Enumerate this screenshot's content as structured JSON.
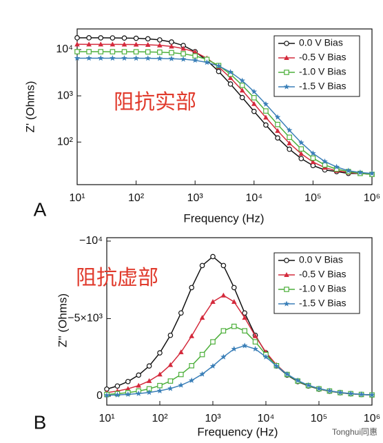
{
  "chart_data": [
    {
      "type": "line",
      "panel_label": "A",
      "annotation": "阻抗实部",
      "xlabel": "Frequency (Hz)",
      "ylabel": "Z' (Ohms)",
      "xscale": "log",
      "yscale": "log",
      "legend": "upper right",
      "xlim": [
        10,
        1000000
      ],
      "ylim": [
        12,
        28000
      ],
      "xticks": [
        {
          "value": 10,
          "label": "10¹"
        },
        {
          "value": 100,
          "label": "10²"
        },
        {
          "value": 1000,
          "label": "10³"
        },
        {
          "value": 10000,
          "label": "10⁴"
        },
        {
          "value": 100000,
          "label": "10⁵"
        },
        {
          "value": 1000000,
          "label": "10⁶"
        }
      ],
      "yticks": [
        {
          "value": 100,
          "label": "10²"
        },
        {
          "value": 1000,
          "label": "10³"
        },
        {
          "value": 10000,
          "label": "10⁴"
        }
      ],
      "x": [
        10,
        15.85,
        25.12,
        39.81,
        63.1,
        100,
        158.5,
        251.2,
        398.1,
        631,
        1000,
        1585,
        2512,
        3981,
        6310,
        10000,
        15850,
        25120,
        39810,
        63100,
        100000,
        158500,
        251200,
        398100,
        631000,
        1000000
      ],
      "series": [
        {
          "name": "0.0 V Bias",
          "color": "#111111",
          "marker": "circle",
          "values": [
            18010,
            18010,
            17970,
            17910,
            17800,
            17590,
            17120,
            16220,
            14600,
            12260,
            9020,
            5850,
            3370,
            1800,
            920,
            461,
            234,
            123,
            70,
            44,
            31,
            25,
            23,
            21,
            21,
            20
          ]
        },
        {
          "name": "-0.5 V Bias",
          "color": "#d42a3c",
          "marker": "triangle",
          "values": [
            13020,
            13010,
            13000,
            12980,
            12940,
            12860,
            12710,
            12370,
            11720,
            10550,
            8860,
            6520,
            4230,
            2440,
            1310,
            670,
            340,
            175,
            94,
            56,
            37,
            28,
            24,
            22,
            21,
            20
          ]
        },
        {
          "name": "-1.0 V Bias",
          "color": "#4caf3a",
          "marker": "square",
          "values": [
            9020,
            9020,
            9010,
            9000,
            8990,
            8970,
            8910,
            8800,
            8570,
            8120,
            7310,
            6140,
            4520,
            2940,
            1690,
            910,
            470,
            240,
            127,
            71,
            45,
            32,
            26,
            23,
            21,
            20
          ]
        },
        {
          "name": "-1.5 V Bias",
          "color": "#3a7fb8",
          "marker": "star",
          "values": [
            6520,
            6520,
            6520,
            6510,
            6510,
            6500,
            6480,
            6440,
            6360,
            6200,
            5870,
            5290,
            4440,
            3270,
            2130,
            1230,
            660,
            345,
            180,
            97,
            57,
            38,
            29,
            24,
            22,
            21
          ]
        }
      ]
    },
    {
      "type": "line",
      "panel_label": "B",
      "annotation": "阻抗虚部",
      "xlabel": "Frequency (Hz)",
      "ylabel": "Z'' (Ohms)",
      "xscale": "log",
      "yscale": "linear",
      "legend": "upper right",
      "xlim": [
        10,
        1000000
      ],
      "ylim": [
        580,
        -10220
      ],
      "xticks": [
        {
          "value": 10,
          "label": "10¹"
        },
        {
          "value": 100,
          "label": "10²"
        },
        {
          "value": 1000,
          "label": "10³"
        },
        {
          "value": 10000,
          "label": "10⁴"
        },
        {
          "value": 100000,
          "label": "10⁵"
        },
        {
          "value": 1000000,
          "label": "10⁶"
        }
      ],
      "yticks": [
        0,
        {
          "value": -5000,
          "label": "−5×10³"
        },
        {
          "value": -10000,
          "label": "−10⁴"
        }
      ],
      "x": [
        10,
        15.85,
        25.12,
        39.81,
        63.1,
        100,
        158.5,
        251.2,
        398.1,
        631,
        1000,
        1585,
        2512,
        3981,
        6310,
        10000,
        15850,
        25120,
        39810,
        63100,
        100000,
        158500,
        251200,
        398100,
        631000,
        1000000
      ],
      "series": [
        {
          "name": "0.0 V Bias",
          "color": "#111111",
          "marker": "circle",
          "values": [
            -452,
            -653,
            -941,
            -1357,
            -1944,
            -2790,
            -3924,
            -5364,
            -7002,
            -8424,
            -9000,
            -8424,
            -7002,
            -5364,
            -3924,
            -2790,
            -1944,
            -1357,
            -941,
            -653,
            -452,
            -313,
            -216,
            -149,
            -103,
            -72
          ]
        },
        {
          "name": "-0.5 V Bias",
          "color": "#d42a3c",
          "marker": "triangle",
          "values": [
            -226,
            -326,
            -472,
            -680,
            -980,
            -1404,
            -2015,
            -2834,
            -3874,
            -5057,
            -6084,
            -6500,
            -6084,
            -5057,
            -3874,
            -2834,
            -2015,
            -1404,
            -980,
            -680,
            -472,
            -326,
            -226,
            -156,
            -108,
            -74
          ]
        },
        {
          "name": "-1.0 V Bias",
          "color": "#4caf3a",
          "marker": "square",
          "values": [
            -108,
            -157,
            -226,
            -327,
            -471,
            -679,
            -972,
            -1395,
            -1962,
            -2682,
            -3501,
            -4212,
            -4500,
            -4212,
            -3501,
            -2682,
            -1962,
            -1395,
            -972,
            -679,
            -471,
            -327,
            -226,
            -157,
            -108,
            -75
          ]
        },
        {
          "name": "-1.5 V Bias",
          "color": "#3a7fb8",
          "marker": "star",
          "values": [
            -54,
            -78,
            -113,
            -163,
            -236,
            -340,
            -490,
            -702,
            -1008,
            -1417,
            -1937,
            -2529,
            -3042,
            -3250,
            -3042,
            -2529,
            -1937,
            -1417,
            -1008,
            -702,
            -490,
            -340,
            -236,
            -163,
            -113,
            -78
          ]
        }
      ]
    }
  ],
  "watermark": "Tonghui同惠"
}
